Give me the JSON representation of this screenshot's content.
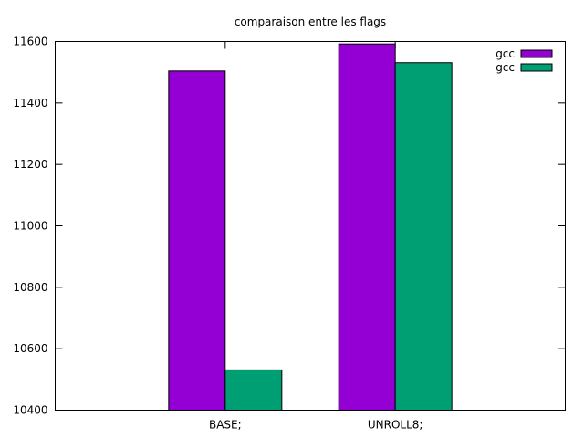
{
  "chart_data": {
    "type": "bar",
    "title": "comparaison entre les flags",
    "xlabel": "",
    "ylabel": "",
    "categories": [
      "BASE;",
      "UNROLL8;"
    ],
    "series": [
      {
        "name": "gcc",
        "values": [
          11504,
          11592
        ],
        "color": "#9400d3"
      },
      {
        "name": "gcc",
        "values": [
          10531,
          11531
        ],
        "color": "#009e73"
      }
    ],
    "ylim": [
      10400,
      11600
    ],
    "yticks": [
      "10400",
      "10600",
      "10800",
      "11000",
      "11200",
      "11400",
      "11600"
    ],
    "grid": false,
    "legend_position": "top-right"
  }
}
